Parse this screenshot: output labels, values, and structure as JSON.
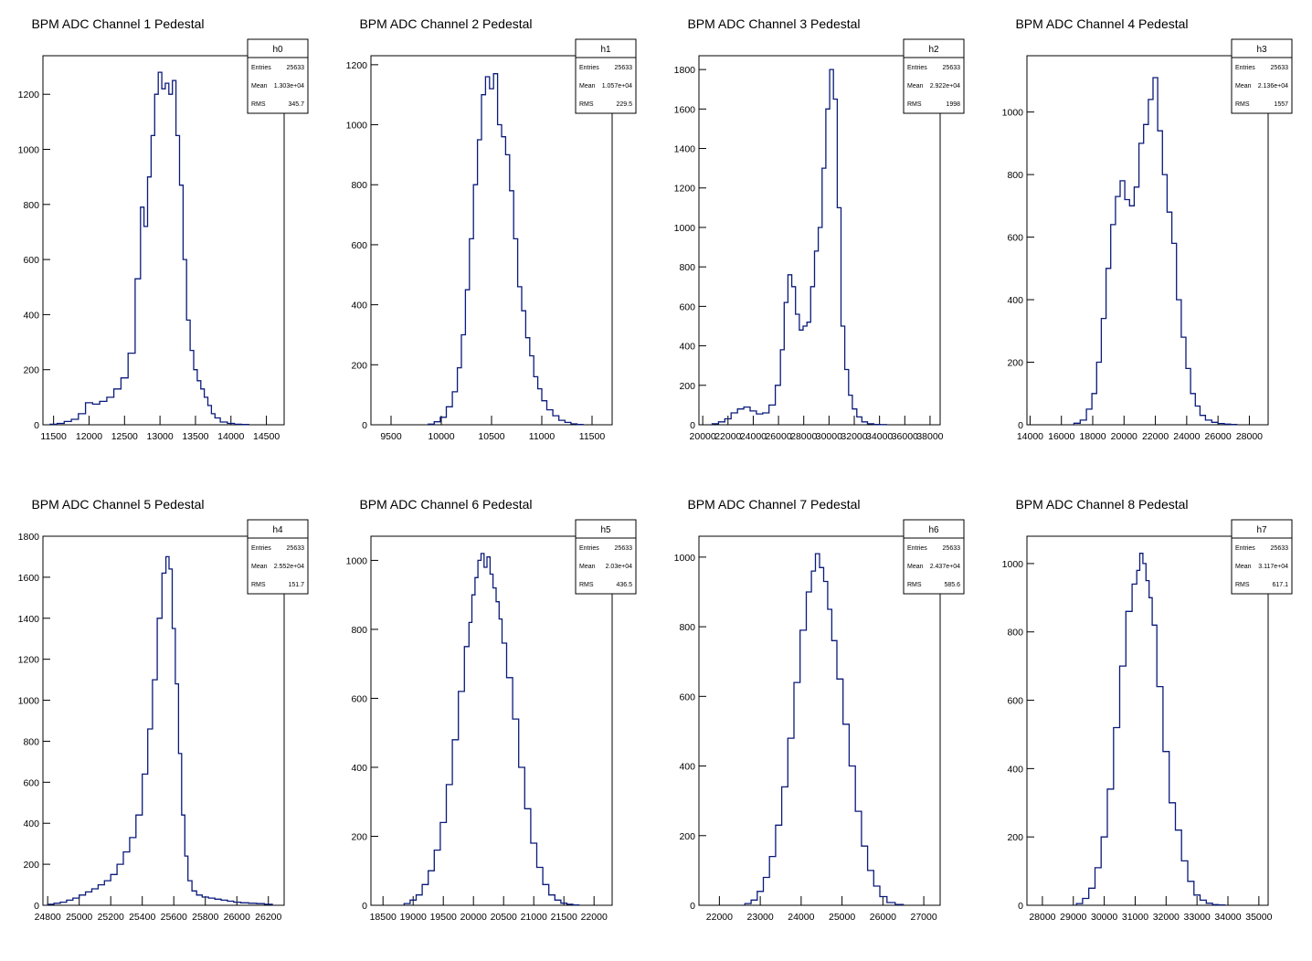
{
  "chart_data": [
    {
      "type": "histogram",
      "title": "BPM ADC Channel 1 Pedestal",
      "xlim": [
        11350,
        14750
      ],
      "ylim": [
        0,
        1340
      ],
      "xticks": [
        11500,
        12000,
        12500,
        13000,
        13500,
        14000,
        14500
      ],
      "yticks": [
        0,
        200,
        400,
        600,
        800,
        1000,
        1200
      ],
      "stats": {
        "name": "h0",
        "entries": "25633",
        "mean": "1.303e+04",
        "rms": "345.7"
      },
      "x": [
        11500,
        11600,
        11700,
        11800,
        11900,
        12000,
        12100,
        12200,
        12300,
        12400,
        12500,
        12600,
        12700,
        12750,
        12800,
        12850,
        12900,
        12950,
        13000,
        13050,
        13100,
        13150,
        13200,
        13250,
        13300,
        13350,
        13400,
        13450,
        13500,
        13550,
        13600,
        13650,
        13700,
        13750,
        13800,
        13900,
        14000,
        14100,
        14200
      ],
      "y": [
        2,
        5,
        12,
        20,
        40,
        80,
        75,
        85,
        100,
        130,
        170,
        260,
        530,
        790,
        720,
        900,
        1050,
        1200,
        1280,
        1220,
        1240,
        1200,
        1250,
        1050,
        870,
        600,
        380,
        270,
        200,
        160,
        130,
        100,
        70,
        40,
        25,
        10,
        5,
        2,
        1
      ],
      "labels": {
        "entries": "Entries",
        "mean": "Mean",
        "rms": "RMS"
      }
    },
    {
      "type": "histogram",
      "title": "BPM ADC Channel 2 Pedestal",
      "xlim": [
        9300,
        11700
      ],
      "ylim": [
        0,
        1230
      ],
      "xticks": [
        9500,
        10000,
        10500,
        11000,
        11500
      ],
      "yticks": [
        0,
        200,
        400,
        600,
        800,
        1000,
        1200
      ],
      "stats": {
        "name": "h1",
        "entries": "25633",
        "mean": "1.057e+04",
        "rms": "229.5"
      },
      "x": [
        9900,
        9960,
        10020,
        10080,
        10140,
        10180,
        10220,
        10260,
        10300,
        10340,
        10380,
        10420,
        10460,
        10500,
        10540,
        10580,
        10620,
        10660,
        10700,
        10740,
        10780,
        10820,
        10860,
        10900,
        10940,
        10980,
        11020,
        11080,
        11140,
        11200,
        11260,
        11320,
        11380
      ],
      "y": [
        2,
        10,
        25,
        60,
        110,
        190,
        300,
        450,
        620,
        800,
        950,
        1100,
        1160,
        1120,
        1170,
        1000,
        960,
        900,
        780,
        620,
        460,
        380,
        290,
        230,
        160,
        120,
        80,
        50,
        30,
        15,
        8,
        3,
        1
      ],
      "labels": {
        "entries": "Entries",
        "mean": "Mean",
        "rms": "RMS"
      }
    },
    {
      "type": "histogram",
      "title": "BPM ADC Channel 3 Pedestal",
      "xlim": [
        19700,
        38800
      ],
      "ylim": [
        0,
        1870
      ],
      "xticks": [
        20000,
        22000,
        24000,
        26000,
        28000,
        30000,
        32000,
        34000,
        36000,
        38000
      ],
      "yticks": [
        0,
        200,
        400,
        600,
        800,
        1000,
        1200,
        1400,
        1600,
        1800
      ],
      "stats": {
        "name": "h2",
        "entries": "25633",
        "mean": "2.922e+04",
        "rms": "1998"
      },
      "x": [
        21000,
        21500,
        22000,
        22500,
        23000,
        23500,
        24000,
        24500,
        25000,
        25500,
        26000,
        26300,
        26600,
        26900,
        27200,
        27500,
        27800,
        28100,
        28400,
        28700,
        29000,
        29300,
        29600,
        29900,
        30200,
        30500,
        30800,
        31100,
        31400,
        31700,
        32000,
        32400,
        32800,
        33300,
        33800,
        34300
      ],
      "y": [
        5,
        15,
        30,
        60,
        80,
        90,
        70,
        55,
        60,
        100,
        200,
        380,
        620,
        760,
        700,
        560,
        480,
        500,
        520,
        700,
        880,
        1000,
        1300,
        1600,
        1800,
        1650,
        1100,
        500,
        280,
        150,
        80,
        40,
        15,
        5,
        2,
        1
      ],
      "labels": {
        "entries": "Entries",
        "mean": "Mean",
        "rms": "RMS"
      }
    },
    {
      "type": "histogram",
      "title": "BPM ADC Channel 4 Pedestal",
      "xlim": [
        13800,
        29200
      ],
      "ylim": [
        0,
        1180
      ],
      "xticks": [
        14000,
        16000,
        18000,
        20000,
        22000,
        24000,
        26000,
        28000
      ],
      "yticks": [
        0,
        200,
        400,
        600,
        800,
        1000
      ],
      "stats": {
        "name": "h3",
        "entries": "25633",
        "mean": "2.136e+04",
        "rms": "1557"
      },
      "x": [
        17000,
        17400,
        17800,
        18100,
        18400,
        18700,
        19000,
        19300,
        19600,
        19900,
        20200,
        20500,
        20800,
        21100,
        21400,
        21700,
        22000,
        22300,
        22600,
        22900,
        23200,
        23500,
        23800,
        24100,
        24400,
        24700,
        25000,
        25400,
        25800,
        26200,
        26600,
        27000
      ],
      "y": [
        5,
        15,
        50,
        100,
        200,
        340,
        500,
        640,
        730,
        780,
        720,
        700,
        760,
        900,
        960,
        1040,
        1110,
        940,
        800,
        680,
        580,
        400,
        280,
        180,
        100,
        60,
        30,
        15,
        8,
        4,
        2,
        1
      ],
      "labels": {
        "entries": "Entries",
        "mean": "Mean",
        "rms": "RMS"
      }
    },
    {
      "type": "histogram",
      "title": "BPM ADC Channel 5 Pedestal",
      "xlim": [
        24770,
        26300
      ],
      "ylim": [
        0,
        1800
      ],
      "xticks": [
        24800,
        25000,
        25200,
        25400,
        25600,
        25800,
        26000,
        26200
      ],
      "yticks": [
        0,
        200,
        400,
        600,
        800,
        1000,
        1200,
        1400,
        1600,
        1800
      ],
      "stats": {
        "name": "h4",
        "entries": "25633",
        "mean": "2.552e+04",
        "rms": "151.7"
      },
      "x": [
        24820,
        24860,
        24900,
        24940,
        24980,
        25020,
        25060,
        25100,
        25140,
        25180,
        25220,
        25260,
        25300,
        25340,
        25380,
        25420,
        25450,
        25480,
        25510,
        25540,
        25560,
        25580,
        25600,
        25620,
        25640,
        25660,
        25680,
        25700,
        25730,
        25760,
        25800,
        25840,
        25880,
        25920,
        25960,
        26000,
        26050,
        26100,
        26150,
        26200
      ],
      "y": [
        5,
        10,
        15,
        25,
        35,
        50,
        65,
        80,
        100,
        120,
        150,
        200,
        260,
        330,
        440,
        640,
        860,
        1100,
        1400,
        1620,
        1700,
        1640,
        1350,
        1080,
        740,
        440,
        240,
        120,
        70,
        50,
        40,
        35,
        30,
        25,
        20,
        15,
        12,
        10,
        8,
        5
      ],
      "labels": {
        "entries": "Entries",
        "mean": "Mean",
        "rms": "RMS"
      }
    },
    {
      "type": "histogram",
      "title": "BPM ADC Channel 6 Pedestal",
      "xlim": [
        18300,
        22300
      ],
      "ylim": [
        0,
        1070
      ],
      "xticks": [
        18500,
        19000,
        19500,
        20000,
        20500,
        21000,
        21500,
        22000
      ],
      "yticks": [
        0,
        200,
        400,
        600,
        800,
        1000
      ],
      "stats": {
        "name": "h5",
        "entries": "25633",
        "mean": "2.03e+04",
        "rms": "436.5"
      },
      "x": [
        18900,
        19000,
        19100,
        19200,
        19300,
        19400,
        19500,
        19600,
        19700,
        19800,
        19900,
        19950,
        20000,
        20050,
        20100,
        20150,
        20200,
        20250,
        20300,
        20350,
        20400,
        20450,
        20500,
        20600,
        20700,
        20800,
        20900,
        21000,
        21100,
        21200,
        21300,
        21400,
        21500,
        21600,
        21700
      ],
      "y": [
        5,
        15,
        30,
        60,
        100,
        160,
        240,
        350,
        480,
        620,
        750,
        820,
        900,
        950,
        1000,
        1020,
        980,
        1010,
        960,
        920,
        880,
        830,
        760,
        660,
        540,
        400,
        280,
        180,
        110,
        60,
        30,
        15,
        6,
        3,
        1
      ],
      "labels": {
        "entries": "Entries",
        "mean": "Mean",
        "rms": "RMS"
      }
    },
    {
      "type": "histogram",
      "title": "BPM ADC Channel 7 Pedestal",
      "xlim": [
        21500,
        27400
      ],
      "ylim": [
        0,
        1060
      ],
      "xticks": [
        22000,
        23000,
        24000,
        25000,
        26000,
        27000
      ],
      "yticks": [
        0,
        200,
        400,
        600,
        800,
        1000
      ],
      "stats": {
        "name": "h6",
        "entries": "25633",
        "mean": "2.437e+04",
        "rms": "585.6"
      },
      "x": [
        22700,
        22850,
        23000,
        23150,
        23300,
        23450,
        23600,
        23750,
        23900,
        24050,
        24200,
        24300,
        24400,
        24500,
        24600,
        24700,
        24800,
        24950,
        25100,
        25250,
        25400,
        25550,
        25700,
        25850,
        26000,
        26200,
        26400
      ],
      "y": [
        5,
        15,
        40,
        80,
        140,
        230,
        340,
        480,
        640,
        790,
        900,
        960,
        1010,
        970,
        930,
        850,
        760,
        650,
        520,
        400,
        270,
        170,
        100,
        55,
        25,
        8,
        2
      ],
      "labels": {
        "entries": "Entries",
        "mean": "Mean",
        "rms": "RMS"
      }
    },
    {
      "type": "histogram",
      "title": "BPM ADC Channel 8 Pedestal",
      "xlim": [
        27500,
        35300
      ],
      "ylim": [
        0,
        1080
      ],
      "xticks": [
        28000,
        29000,
        30000,
        31000,
        32000,
        33000,
        34000,
        35000
      ],
      "yticks": [
        0,
        200,
        400,
        600,
        800,
        1000
      ],
      "stats": {
        "name": "h7",
        "entries": "25633",
        "mean": "3.117e+04",
        "rms": "617.1"
      },
      "x": [
        29200,
        29400,
        29600,
        29800,
        30000,
        30200,
        30400,
        30600,
        30800,
        31000,
        31100,
        31200,
        31300,
        31400,
        31500,
        31600,
        31800,
        32000,
        32200,
        32400,
        32600,
        32800,
        33000,
        33200,
        33400,
        33600,
        33800
      ],
      "y": [
        5,
        20,
        50,
        110,
        200,
        340,
        520,
        700,
        860,
        940,
        980,
        1030,
        1000,
        950,
        900,
        820,
        640,
        450,
        300,
        220,
        130,
        70,
        30,
        15,
        6,
        2,
        1
      ],
      "labels": {
        "entries": "Entries",
        "mean": "Mean",
        "rms": "RMS"
      }
    }
  ]
}
